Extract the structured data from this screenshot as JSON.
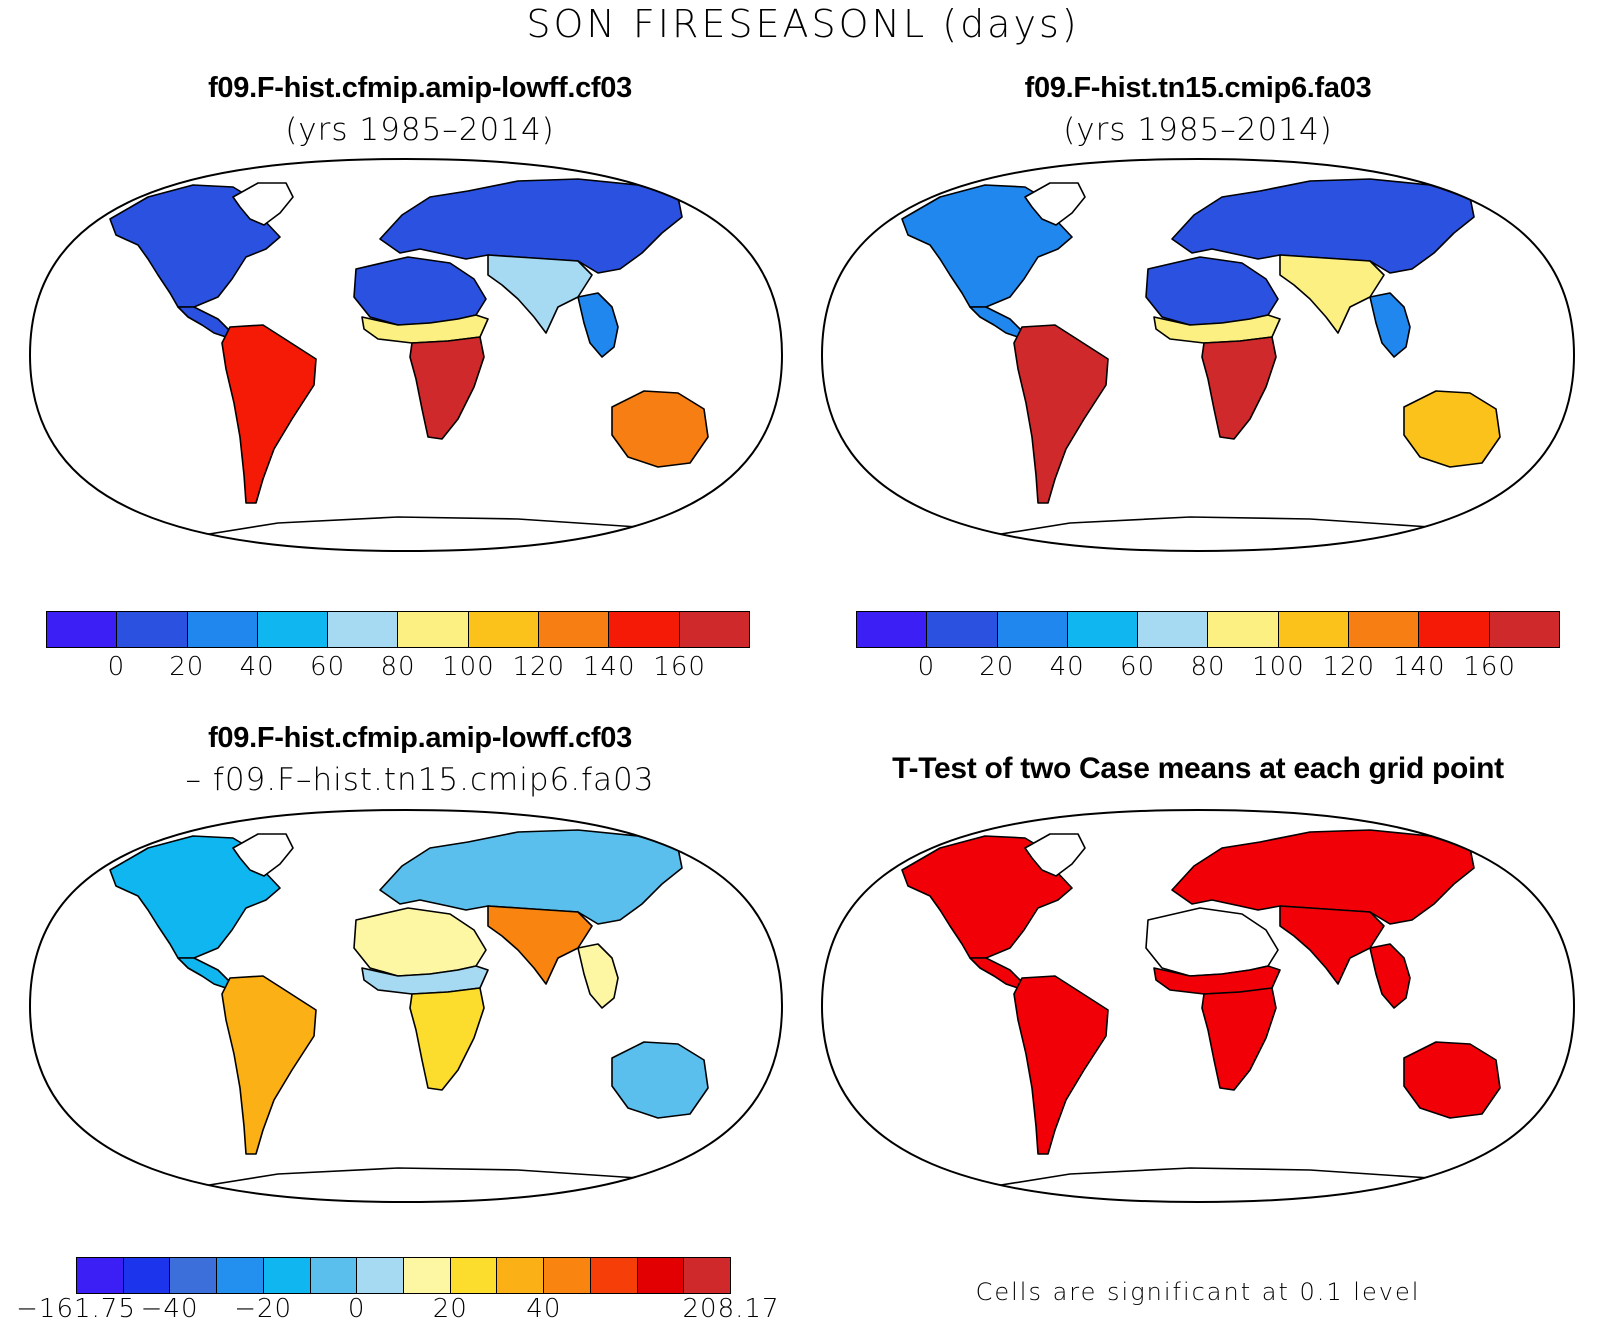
{
  "title": "SON FIRESEASONL (days)",
  "panels": [
    {
      "id": "case1",
      "title": "f09.F-hist.cfmip.amip-lowff.cf03",
      "subtitle": "(yrs 1985–2014)",
      "colorbar": {
        "colors": [
          "#3c1ff5",
          "#2b51e0",
          "#1f87ee",
          "#10b6ef",
          "#a6d9f2",
          "#fbf081",
          "#fcc21c",
          "#f67e12",
          "#f41a05",
          "#d0292b"
        ],
        "ticks": [
          "0",
          "20",
          "40",
          "60",
          "80",
          "100",
          "120",
          "140",
          "160"
        ]
      },
      "region_levels": {
        "north_america": 1,
        "greenland": 0,
        "south_america": 8,
        "africa_north": 1,
        "sahel": 5,
        "africa_south": 9,
        "eurasia": 1,
        "south_asia": 4,
        "se_asia": 2,
        "australia": 7,
        "antarctica": 0
      }
    },
    {
      "id": "case2",
      "title": "f09.F-hist.tn15.cmip6.fa03",
      "subtitle": "(yrs 1985–2014)",
      "colorbar": {
        "colors": [
          "#3c1ff5",
          "#2b51e0",
          "#1f87ee",
          "#10b6ef",
          "#a6d9f2",
          "#fbf081",
          "#fcc21c",
          "#f67e12",
          "#f41a05",
          "#d0292b"
        ],
        "ticks": [
          "0",
          "20",
          "40",
          "60",
          "80",
          "100",
          "120",
          "140",
          "160"
        ]
      },
      "region_levels": {
        "north_america": 2,
        "greenland": 0,
        "south_america": 9,
        "africa_north": 1,
        "sahel": 5,
        "africa_south": 9,
        "eurasia": 1,
        "south_asia": 5,
        "se_asia": 2,
        "australia": 6,
        "antarctica": 0
      }
    },
    {
      "id": "diff",
      "title": "f09.F-hist.cfmip.amip-lowff.cf03",
      "subtitle": "– f09.F–hist.tn15.cmip6.fa03",
      "colorbar": {
        "colors": [
          "#3c1ff5",
          "#1b34ec",
          "#3d6fdb",
          "#2390f0",
          "#0fb6f0",
          "#5bbfee",
          "#a6d9f2",
          "#fdf7a4",
          "#fcdc2c",
          "#fbb015",
          "#f98510",
          "#f63e08",
          "#e20003",
          "#d0292b"
        ],
        "ticks": [
          "−161.75",
          "−40",
          "−20",
          "0",
          "20",
          "40",
          "208.17"
        ],
        "tick_edges": [
          0,
          2,
          4,
          6,
          8,
          10,
          14
        ]
      },
      "region_levels": {
        "north_america": 4,
        "greenland": 0,
        "south_america": 9,
        "africa_north": 7,
        "sahel": 6,
        "africa_south": 8,
        "eurasia": 5,
        "south_asia": 10,
        "se_asia": 7,
        "australia": 5,
        "antarctica": 0
      }
    },
    {
      "id": "ttest",
      "title": "T-Test of two Case means at each grid point",
      "note": "Cells are significant at 0.1 level",
      "sig_color": "#f20008"
    }
  ]
}
